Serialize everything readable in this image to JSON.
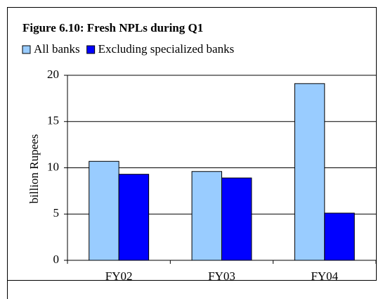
{
  "chart_data": {
    "type": "bar",
    "title": "Figure 6.10: Fresh NPLs during Q1",
    "y_label": "billion Rupees",
    "categories": [
      "FY02",
      "FY03",
      "FY04"
    ],
    "series": [
      {
        "name": "All banks",
        "color": "#99ccff",
        "values": [
          10.7,
          9.6,
          19.1
        ]
      },
      {
        "name": "Excluding specialized banks",
        "color": "#0000ff",
        "values": [
          9.3,
          8.9,
          5.1
        ]
      }
    ],
    "ylim": [
      0,
      20
    ],
    "yticks": [
      0,
      5,
      10,
      15,
      20
    ],
    "grid": true,
    "legend": "top"
  }
}
